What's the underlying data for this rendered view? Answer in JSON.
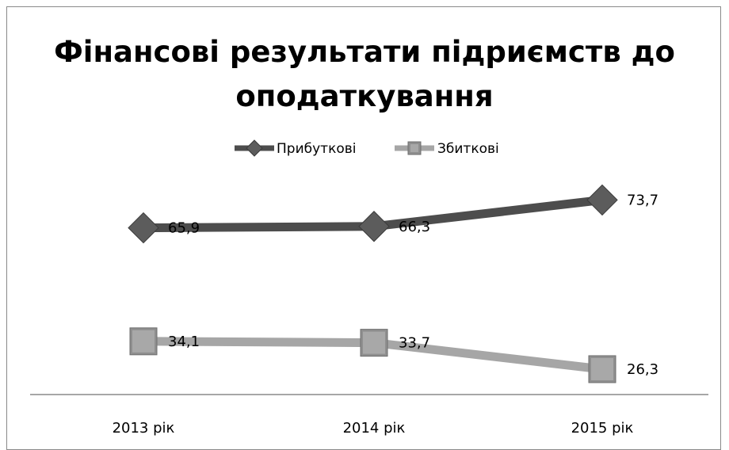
{
  "chart_data": {
    "type": "line",
    "title": "Фінансові результати підриємств до оподаткування",
    "categories": [
      "2013 рік",
      "2014 рік",
      "2015 рік"
    ],
    "series": [
      {
        "name": "Прибуткові",
        "values": [
          65.9,
          66.3,
          73.7
        ],
        "labels": [
          "65,9",
          "66,3",
          "73,7"
        ],
        "color": "#4d4d4d",
        "marker": "diamond"
      },
      {
        "name": "Збиткові",
        "values": [
          34.1,
          33.7,
          26.3
        ],
        "labels": [
          "34,1",
          "33,7",
          "26,3"
        ],
        "color": "#a6a6a6",
        "marker": "square"
      }
    ],
    "legend_position": "top",
    "grid": false
  }
}
